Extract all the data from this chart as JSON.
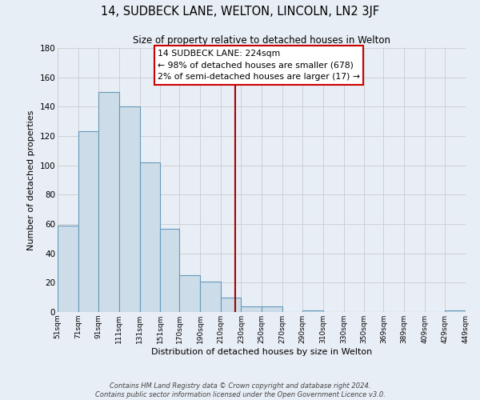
{
  "title": "14, SUDBECK LANE, WELTON, LINCOLN, LN2 3JF",
  "subtitle": "Size of property relative to detached houses in Welton",
  "xlabel": "Distribution of detached houses by size in Welton",
  "ylabel": "Number of detached properties",
  "footer_lines": [
    "Contains HM Land Registry data © Crown copyright and database right 2024.",
    "Contains public sector information licensed under the Open Government Licence v3.0."
  ],
  "bar_edges": [
    51,
    71,
    91,
    111,
    131,
    151,
    170,
    190,
    210,
    230,
    250,
    270,
    290,
    310,
    330,
    350,
    369,
    389,
    409,
    429,
    449
  ],
  "bar_heights": [
    59,
    123,
    150,
    140,
    102,
    57,
    25,
    21,
    10,
    4,
    4,
    0,
    1,
    0,
    0,
    0,
    0,
    0,
    0,
    1
  ],
  "bar_color": "#ccdce8",
  "bar_edge_color": "#6699bb",
  "grid_color": "#cccccc",
  "property_line_x": 224,
  "property_line_color": "#aa0000",
  "annotation_text": "14 SUDBECK LANE: 224sqm\n← 98% of detached houses are smaller (678)\n2% of semi-detached houses are larger (17) →",
  "annotation_box_color": "#ffffff",
  "annotation_box_edge": "#cc0000",
  "ylim": [
    0,
    180
  ],
  "yticks": [
    0,
    20,
    40,
    60,
    80,
    100,
    120,
    140,
    160,
    180
  ],
  "tick_labels": [
    "51sqm",
    "71sqm",
    "91sqm",
    "111sqm",
    "131sqm",
    "151sqm",
    "170sqm",
    "190sqm",
    "210sqm",
    "230sqm",
    "250sqm",
    "270sqm",
    "290sqm",
    "310sqm",
    "330sqm",
    "350sqm",
    "369sqm",
    "389sqm",
    "409sqm",
    "429sqm",
    "449sqm"
  ],
  "background_color": "#e8eef5"
}
